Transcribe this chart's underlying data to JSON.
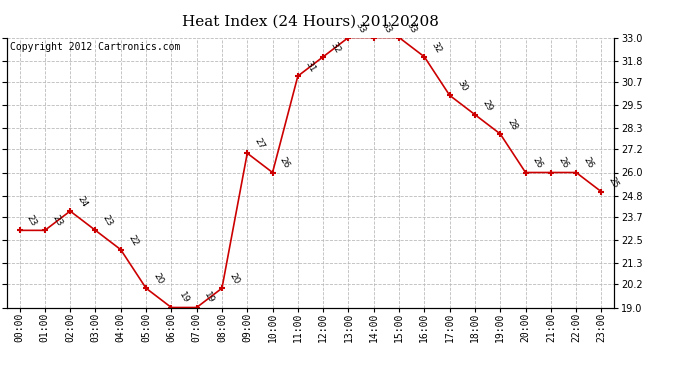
{
  "title": "Heat Index (24 Hours) 20120208",
  "copyright_text": "Copyright 2012 Cartronics.com",
  "hours": [
    0,
    1,
    2,
    3,
    4,
    5,
    6,
    7,
    8,
    9,
    10,
    11,
    12,
    13,
    14,
    15,
    16,
    17,
    18,
    19,
    20,
    21,
    22,
    23
  ],
  "hour_labels": [
    "00:00",
    "01:00",
    "02:00",
    "03:00",
    "04:00",
    "05:00",
    "06:00",
    "07:00",
    "08:00",
    "09:00",
    "10:00",
    "11:00",
    "12:00",
    "13:00",
    "14:00",
    "15:00",
    "16:00",
    "17:00",
    "18:00",
    "19:00",
    "20:00",
    "21:00",
    "22:00",
    "23:00"
  ],
  "values": [
    23,
    23,
    24,
    23,
    22,
    20,
    19,
    19,
    20,
    27,
    26,
    31,
    32,
    33,
    33,
    33,
    32,
    30,
    29,
    28,
    26,
    26,
    26,
    25
  ],
  "ylim_min": 19.0,
  "ylim_max": 33.0,
  "yticks": [
    19.0,
    20.2,
    21.3,
    22.5,
    23.7,
    24.8,
    26.0,
    27.2,
    28.3,
    29.5,
    30.7,
    31.8,
    33.0
  ],
  "line_color": "#cc0000",
  "marker_color": "#cc0000",
  "grid_color": "#bbbbbb",
  "bg_color": "#ffffff",
  "title_fontsize": 11,
  "tick_fontsize": 7,
  "annot_fontsize": 6.5,
  "copyright_fontsize": 7
}
